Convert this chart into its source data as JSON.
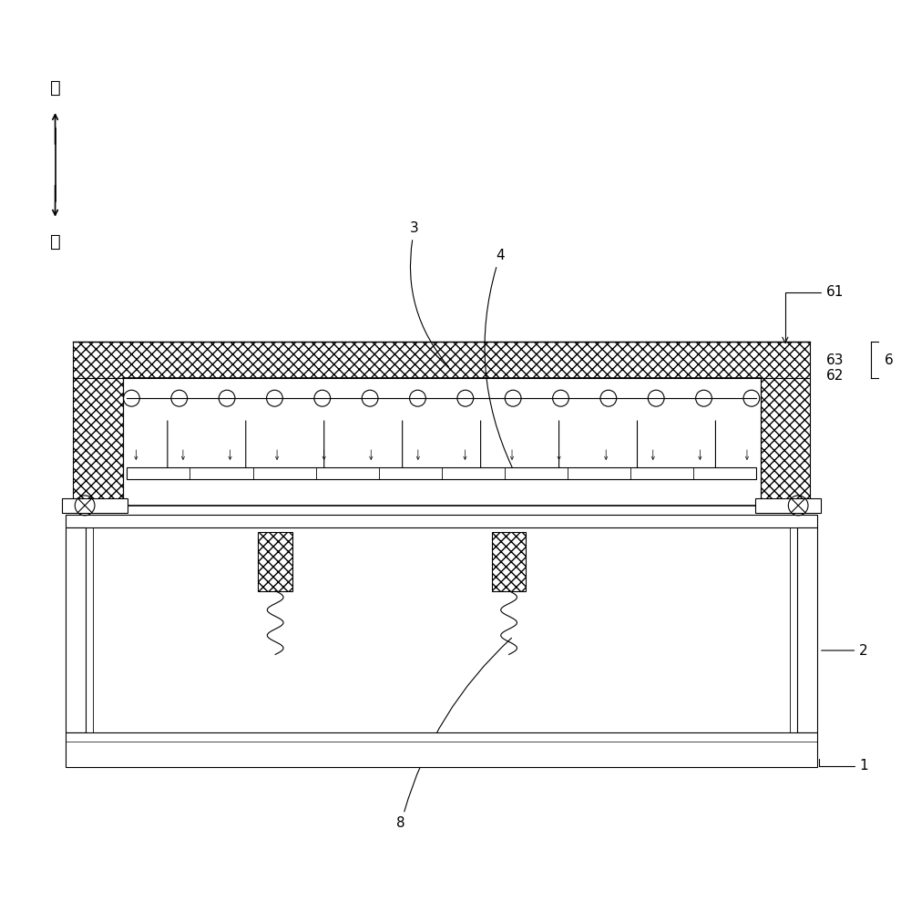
{
  "bg_color": "#ffffff",
  "line_color": "#000000",
  "fig_width": 9.89,
  "fig_height": 10.0,
  "dpi": 100,
  "up_label": "上",
  "down_label": "下"
}
